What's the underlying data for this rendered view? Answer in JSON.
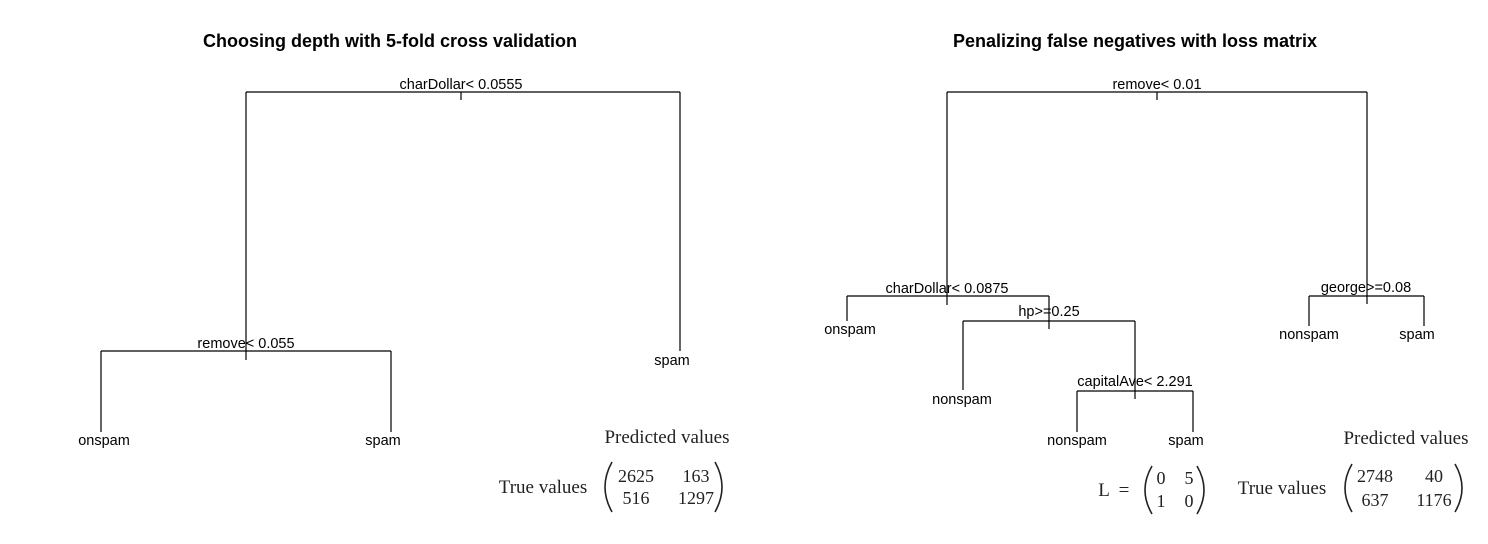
{
  "left": {
    "title": "Choosing depth with 5-fold cross validation",
    "splits": [
      "charDollar< 0.0555",
      "remove< 0.055"
    ],
    "leaves": [
      "onspam",
      "spam",
      "spam"
    ],
    "confusion": {
      "header": "Predicted values",
      "row_label": "True values",
      "cells": [
        "2625",
        "163",
        "516",
        "1297"
      ]
    }
  },
  "right": {
    "title": "Penalizing false negatives with loss matrix",
    "splits": [
      "remove< 0.01",
      "charDollar< 0.0875",
      "hp>=0.25",
      "capitalAve< 2.291",
      "george>=0.08"
    ],
    "leaves": [
      "onspam",
      "nonspam",
      "nonspam",
      "spam",
      "nonspam",
      "spam"
    ],
    "loss": {
      "label": "L",
      "equals": "=",
      "cells": [
        "0",
        "5",
        "1",
        "0"
      ]
    },
    "confusion": {
      "header": "Predicted values",
      "row_label": "True values",
      "cells": [
        "2748",
        "40",
        "637",
        "1176"
      ]
    }
  }
}
